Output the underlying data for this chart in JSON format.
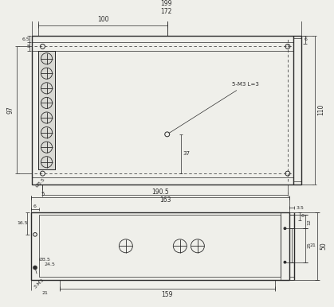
{
  "bg_color": "#efefea",
  "line_color": "#2a2a2a",
  "dim_color": "#2a2a2a",
  "figsize": [
    4.19,
    3.86
  ],
  "dpi": 100,
  "top_view": {
    "note_5M3": "5-M3 L=3"
  },
  "bottom_view": {
    "labels": {
      "dim_1905": "190.5",
      "dim_159": "159",
      "dim_21": "21",
      "dim_6b": "6",
      "dim_165": "16.5",
      "dim_35b": "Ø3.5",
      "dim_245": "24.5",
      "dim_3M3": "3-M3",
      "dim_35r": "3.5",
      "dim_6r": "6",
      "dim_12": "12",
      "dim_25": "25",
      "dim_21r": "21",
      "dim_50": "50"
    }
  }
}
